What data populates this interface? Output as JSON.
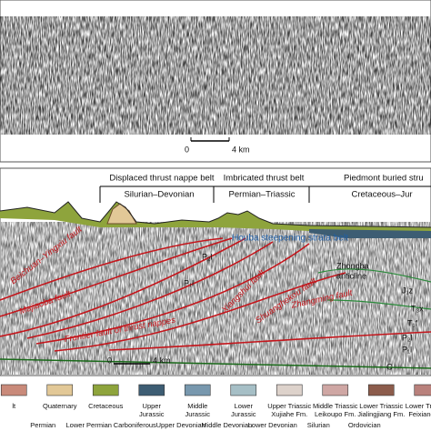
{
  "top_panel": {
    "scale_zero": "0",
    "scale_end": "4 km"
  },
  "section": {
    "belts": [
      "Displaced thrust nappe belt",
      "Imbricated thrust belt",
      "Piedmont buried stru"
    ],
    "ages": [
      "Silurian–Devonian",
      "Permian–Triassic",
      "Cretaceous–Jur"
    ],
    "houba": "Houba steepening strata belt",
    "faults": [
      "Beichuan–Yingxiu fault",
      "Majiaoba fault",
      "Frontier fault of thrust nappes",
      "Xiangshui fault",
      "Shuanghekou fault",
      "Zhangming fault"
    ],
    "anticline": [
      "Zhongba",
      "anticline"
    ],
    "units": [
      "P₂l",
      "P₁l",
      "J₁z",
      "T₃x",
      "T₁f",
      "P₂l",
      "P₁l",
      "C"
    ],
    "scale_zero": "0",
    "scale_end": "4 km"
  },
  "legend": {
    "row1": [
      {
        "line1": "lt",
        "line2": "",
        "color": "#c98a7a"
      },
      {
        "line1": "Quaternary",
        "line2": "",
        "color": "#e2c897"
      },
      {
        "line1": "Cretaceous",
        "line2": "",
        "color": "#8ea43c"
      },
      {
        "line1": "Upper",
        "line2": "Jurassic",
        "color": "#3d5d73"
      },
      {
        "line1": "Middle",
        "line2": "Jurassic",
        "color": "#7898ae"
      },
      {
        "line1": "Lower",
        "line2": "Jurassic",
        "color": "#a6bfc6"
      },
      {
        "line1": "Upper Triassic",
        "line2": "Xujiahe Fm.",
        "color": "#ddd2cb"
      },
      {
        "line1": "Middle Triassic",
        "line2": "Leikoupo Fm.",
        "color": "#cfa7a4"
      },
      {
        "line1": "Lower Triassic",
        "line2": "Jialingjiang Fm.",
        "color": "#8c5c4c"
      },
      {
        "line1": "Lower Triassic",
        "line2": "Feixianguan",
        "color": "#b9817c"
      }
    ],
    "row2": [
      "Permian",
      "Lower Permian",
      "Carboniferous",
      "Upper Devonian",
      "Middle Devonian",
      "Lower Devonian",
      "Silurian",
      "Ordovician"
    ]
  }
}
